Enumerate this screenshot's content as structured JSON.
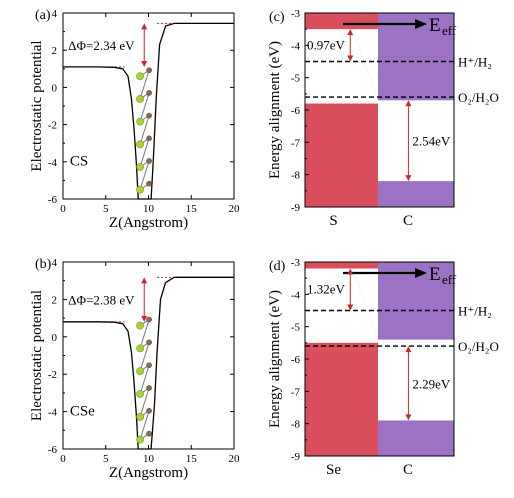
{
  "chart_data": [
    {
      "panel_label": "(a)",
      "type": "line",
      "xlabel": "Z(Angstrom)",
      "ylabel": "Electrostatic potential",
      "xlim": [
        0,
        20
      ],
      "ylim": [
        -6,
        4
      ],
      "xticks": [
        "0",
        "5",
        "10",
        "15",
        "20"
      ],
      "yticks": [
        "-6",
        "-4",
        "-2",
        "0",
        "2",
        "4"
      ],
      "material": "CS",
      "annotation": "ΔΦ=2.34 eV",
      "left_vacuum_level": 1.1,
      "right_vacuum_level": 3.44,
      "x": [
        0,
        4,
        6,
        7,
        7.6,
        8.0,
        8.3,
        8.6,
        8.8,
        9.2,
        9.6,
        10.0,
        10.3,
        10.6,
        10.9,
        11.3,
        12,
        13,
        15,
        20
      ],
      "y": [
        1.1,
        1.1,
        1.08,
        1.0,
        0.6,
        -0.6,
        -2.2,
        -4.2,
        -6,
        -6,
        -6,
        -6,
        -6,
        -3.6,
        -0.6,
        2.3,
        3.3,
        3.44,
        3.44,
        3.44
      ]
    },
    {
      "panel_label": "(b)",
      "type": "line",
      "xlabel": "Z(Angstrom)",
      "ylabel": "Electrostatic potential",
      "xlim": [
        0,
        20
      ],
      "ylim": [
        -6,
        4
      ],
      "xticks": [
        "0",
        "5",
        "10",
        "15",
        "20"
      ],
      "yticks": [
        "-6",
        "-4",
        "-2",
        "0",
        "2",
        "4"
      ],
      "material": "CSe",
      "annotation": "ΔΦ=2.38 eV",
      "left_vacuum_level": 0.8,
      "right_vacuum_level": 3.18,
      "x": [
        0,
        4,
        6,
        7,
        7.6,
        8.0,
        8.3,
        8.6,
        8.8,
        9.2,
        9.6,
        10.0,
        10.3,
        10.7,
        11.0,
        11.4,
        12,
        13,
        15,
        20
      ],
      "y": [
        0.8,
        0.8,
        0.78,
        0.7,
        0.3,
        -0.8,
        -2.4,
        -4.3,
        -6,
        -6,
        -6,
        -6,
        -6,
        -3.6,
        -0.8,
        2.0,
        2.9,
        3.18,
        3.18,
        3.18
      ]
    },
    {
      "panel_label": "(c)",
      "type": "area",
      "ylabel": "Energy alignment (eV)",
      "ylim": [
        -9,
        -3
      ],
      "yticks": [
        "-3",
        "-4",
        "-5",
        "-6",
        "-7",
        "-8",
        "-9"
      ],
      "categories": [
        "S",
        "C"
      ],
      "field_label": "E",
      "field_subscript": "eff",
      "levels": [
        {
          "name": "H⁺/H₂",
          "value": -4.5
        },
        {
          "name": "O₂/H₂O",
          "value": -5.6
        }
      ],
      "S_band_edges": {
        "upper_edge": -3.5,
        "lower_edge": -5.8
      },
      "C_band_edges": {
        "upper_edge": -5.7,
        "lower_edge": -8.2
      },
      "annotations": [
        {
          "text": "0.97eV",
          "from": -3.5,
          "to": -4.5
        },
        {
          "text": "2.54eV",
          "from": -5.7,
          "to": -8.2
        }
      ]
    },
    {
      "panel_label": "(d)",
      "type": "area",
      "ylabel": "Energy alignment (eV)",
      "ylim": [
        -9,
        -3
      ],
      "yticks": [
        "-3",
        "-4",
        "-5",
        "-6",
        "-7",
        "-8",
        "-9"
      ],
      "categories": [
        "Se",
        "C"
      ],
      "field_label": "E",
      "field_subscript": "eff",
      "levels": [
        {
          "name": "H⁺/H₂",
          "value": -4.5
        },
        {
          "name": "O₂/H₂O",
          "value": -5.6
        }
      ],
      "Se_band_edges": {
        "upper_edge": -3.2,
        "lower_edge": -5.5
      },
      "C_band_edges": {
        "upper_edge": -5.4,
        "lower_edge": -7.9
      },
      "annotations": [
        {
          "text": "1.32eV",
          "from": -3.2,
          "to": -4.5
        },
        {
          "text": "2.29eV",
          "from": -5.6,
          "to": -7.9
        }
      ]
    }
  ],
  "colors": {
    "red_region": "#d9505c",
    "purple_region": "#9b72c4",
    "curve": "#000000",
    "dashed_red": "#c8262b",
    "arrow_red": "#c8262b",
    "atom_green": "#a8d13a",
    "atom_brown": "#8a6a4f"
  }
}
